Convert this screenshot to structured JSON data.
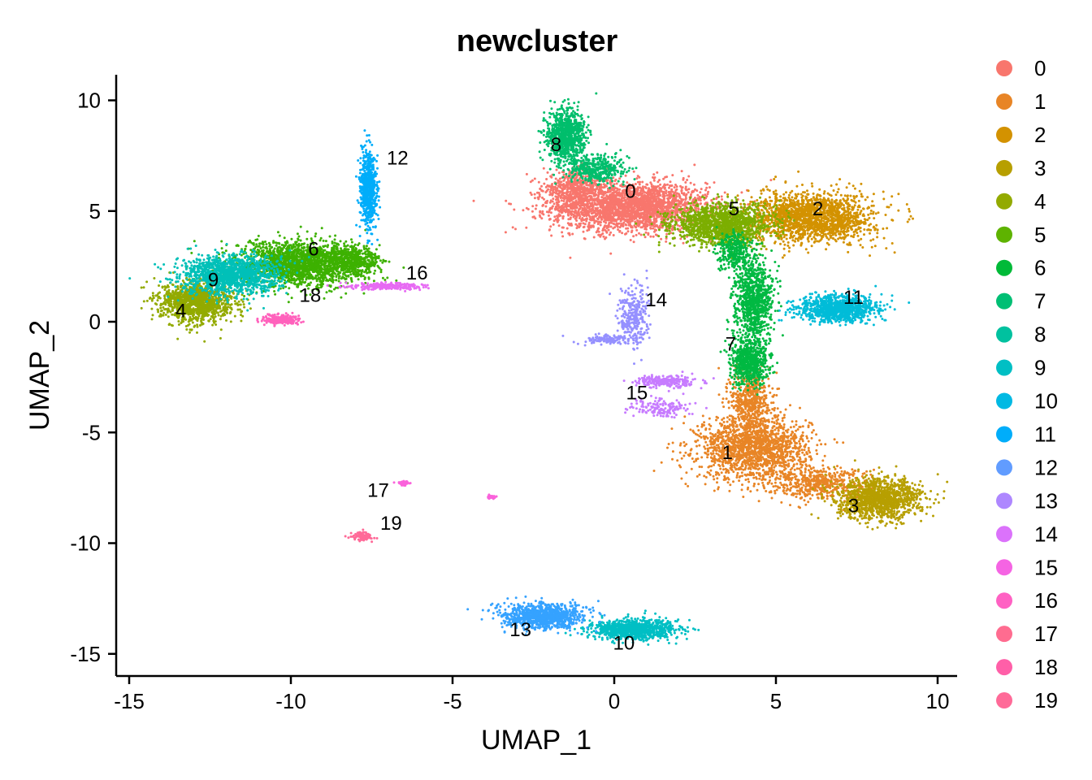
{
  "chart_data": {
    "type": "scatter",
    "title": "newcluster",
    "xlabel": "UMAP_1",
    "ylabel": "UMAP_2",
    "xlim": [
      -15.5,
      10.6
    ],
    "ylim": [
      -16.3,
      11.2
    ],
    "xticks": [
      -15,
      -10,
      -5,
      0,
      5,
      10
    ],
    "yticks": [
      10,
      5,
      0,
      -5,
      -10,
      -15
    ],
    "grid": false,
    "legend_position": "right",
    "legend": [
      {
        "label": "0",
        "color": "#F8766D"
      },
      {
        "label": "1",
        "color": "#E88526"
      },
      {
        "label": "2",
        "color": "#D39200"
      },
      {
        "label": "3",
        "color": "#B79F00"
      },
      {
        "label": "4",
        "color": "#93AA00"
      },
      {
        "label": "5",
        "color": "#5EB300"
      },
      {
        "label": "6",
        "color": "#00BA38"
      },
      {
        "label": "7",
        "color": "#00BF74"
      },
      {
        "label": "8",
        "color": "#00C19F"
      },
      {
        "label": "9",
        "color": "#00BFC4"
      },
      {
        "label": "10",
        "color": "#00B9E3"
      },
      {
        "label": "11",
        "color": "#00ADFA"
      },
      {
        "label": "12",
        "color": "#619CFF"
      },
      {
        "label": "13",
        "color": "#AE87FF"
      },
      {
        "label": "14",
        "color": "#DB72FB"
      },
      {
        "label": "15",
        "color": "#F564E3"
      },
      {
        "label": "16",
        "color": "#FF61C3"
      },
      {
        "label": "17",
        "color": "#FF6C90"
      },
      {
        "label": "18",
        "color": "#FF5FA8"
      },
      {
        "label": "19",
        "color": "#FF6A98"
      }
    ],
    "clusters": [
      {
        "id": "0",
        "label_at": [
          0.5,
          5.6
        ],
        "color": "#F8766D",
        "blobs": [
          [
            0.5,
            5.2,
            2.4,
            1.1,
            2600
          ],
          [
            -1.2,
            6.0,
            1.0,
            0.8,
            500
          ]
        ]
      },
      {
        "id": "1",
        "label_at": [
          3.5,
          -6.2
        ],
        "color": "#E88526",
        "blobs": [
          [
            4.3,
            -5.7,
            1.7,
            1.4,
            1700
          ],
          [
            4.2,
            -3.5,
            0.6,
            1.3,
            500
          ],
          [
            6.3,
            -7.3,
            1.6,
            0.7,
            500
          ]
        ]
      },
      {
        "id": "2",
        "label_at": [
          6.3,
          4.8
        ],
        "color": "#D39200",
        "blobs": [
          [
            6.1,
            4.7,
            1.9,
            1.1,
            1800
          ]
        ]
      },
      {
        "id": "3",
        "label_at": [
          7.4,
          -8.6
        ],
        "color": "#B79F00",
        "blobs": [
          [
            8.2,
            -8.0,
            1.3,
            0.9,
            1300
          ]
        ]
      },
      {
        "id": "4",
        "label_at": [
          -13.4,
          0.2
        ],
        "color": "#93AA00",
        "blobs": [
          [
            -12.9,
            0.9,
            1.1,
            0.9,
            1300
          ]
        ]
      },
      {
        "id": "5",
        "label_at": [
          3.7,
          4.8
        ],
        "color": "#7CAE00",
        "blobs": [
          [
            3.3,
            4.4,
            1.5,
            0.9,
            1400
          ]
        ]
      },
      {
        "id": "6",
        "label_at": [
          -9.3,
          3.0
        ],
        "color": "#3DB100",
        "blobs": [
          [
            -9.7,
            2.6,
            1.9,
            1.0,
            2000
          ],
          [
            -8.0,
            2.8,
            0.8,
            0.6,
            400
          ]
        ]
      },
      {
        "id": "7",
        "label_at": [
          3.6,
          -1.3
        ],
        "color": "#00B942",
        "blobs": [
          [
            4.3,
            1.0,
            0.6,
            1.8,
            900
          ],
          [
            4.2,
            -1.8,
            0.6,
            1.0,
            700
          ],
          [
            3.7,
            3.2,
            0.5,
            0.8,
            300
          ]
        ]
      },
      {
        "id": "8",
        "label_at": [
          -1.8,
          7.7
        ],
        "color": "#00BE6C",
        "blobs": [
          [
            -1.5,
            8.4,
            0.6,
            1.2,
            900
          ],
          [
            -0.6,
            6.9,
            0.9,
            0.6,
            400
          ]
        ]
      },
      {
        "id": "9",
        "label_at": [
          -12.4,
          1.6
        ],
        "color": "#00C0B8",
        "blobs": [
          [
            -11.9,
            2.1,
            1.5,
            0.9,
            1400
          ]
        ]
      },
      {
        "id": "10",
        "label_at": [
          0.3,
          -14.8
        ],
        "color": "#00BFC4",
        "blobs": [
          [
            0.6,
            -13.9,
            1.3,
            0.45,
            1000
          ]
        ]
      },
      {
        "id": "11",
        "label_at": [
          7.4,
          0.8
        ],
        "color": "#00BCD8",
        "blobs": [
          [
            6.9,
            0.6,
            1.2,
            0.6,
            1000
          ]
        ]
      },
      {
        "id": "12",
        "label_at": [
          -6.7,
          7.1
        ],
        "color": "#00ADFA",
        "blobs": [
          [
            -7.6,
            6.0,
            0.25,
            1.6,
            700
          ]
        ]
      },
      {
        "id": "13",
        "label_at": [
          -2.9,
          -14.2
        ],
        "color": "#35A2FF",
        "blobs": [
          [
            -2.2,
            -13.3,
            1.2,
            0.55,
            1000
          ]
        ]
      },
      {
        "id": "14",
        "label_at": [
          1.3,
          0.7
        ],
        "color": "#9590FF",
        "blobs": [
          [
            0.6,
            0.2,
            0.5,
            1.4,
            300
          ],
          [
            -0.3,
            -0.8,
            0.7,
            0.2,
            120
          ]
        ]
      },
      {
        "id": "15",
        "label_at": [
          0.7,
          -3.5
        ],
        "color": "#C77CFF",
        "blobs": [
          [
            1.6,
            -2.7,
            0.9,
            0.25,
            250
          ],
          [
            1.5,
            -3.9,
            0.9,
            0.4,
            150
          ]
        ]
      },
      {
        "id": "16",
        "label_at": [
          -6.1,
          1.9
        ],
        "color": "#E76BF3",
        "blobs": [
          [
            -7.1,
            1.6,
            1.2,
            0.15,
            250
          ]
        ]
      },
      {
        "id": "17",
        "label_at": [
          -7.3,
          -7.9
        ],
        "color": "#FA62DB",
        "blobs": [
          [
            -6.5,
            -7.3,
            0.15,
            0.1,
            70
          ],
          [
            -3.8,
            -7.9,
            0.15,
            0.1,
            40
          ]
        ]
      },
      {
        "id": "18",
        "label_at": [
          -9.4,
          0.9
        ],
        "color": "#FF62BC",
        "blobs": [
          [
            -10.3,
            0.1,
            0.5,
            0.25,
            250
          ]
        ]
      },
      {
        "id": "19",
        "label_at": [
          -6.9,
          -9.4
        ],
        "color": "#FF6A98",
        "blobs": [
          [
            -7.8,
            -9.7,
            0.3,
            0.2,
            90
          ]
        ]
      }
    ]
  }
}
